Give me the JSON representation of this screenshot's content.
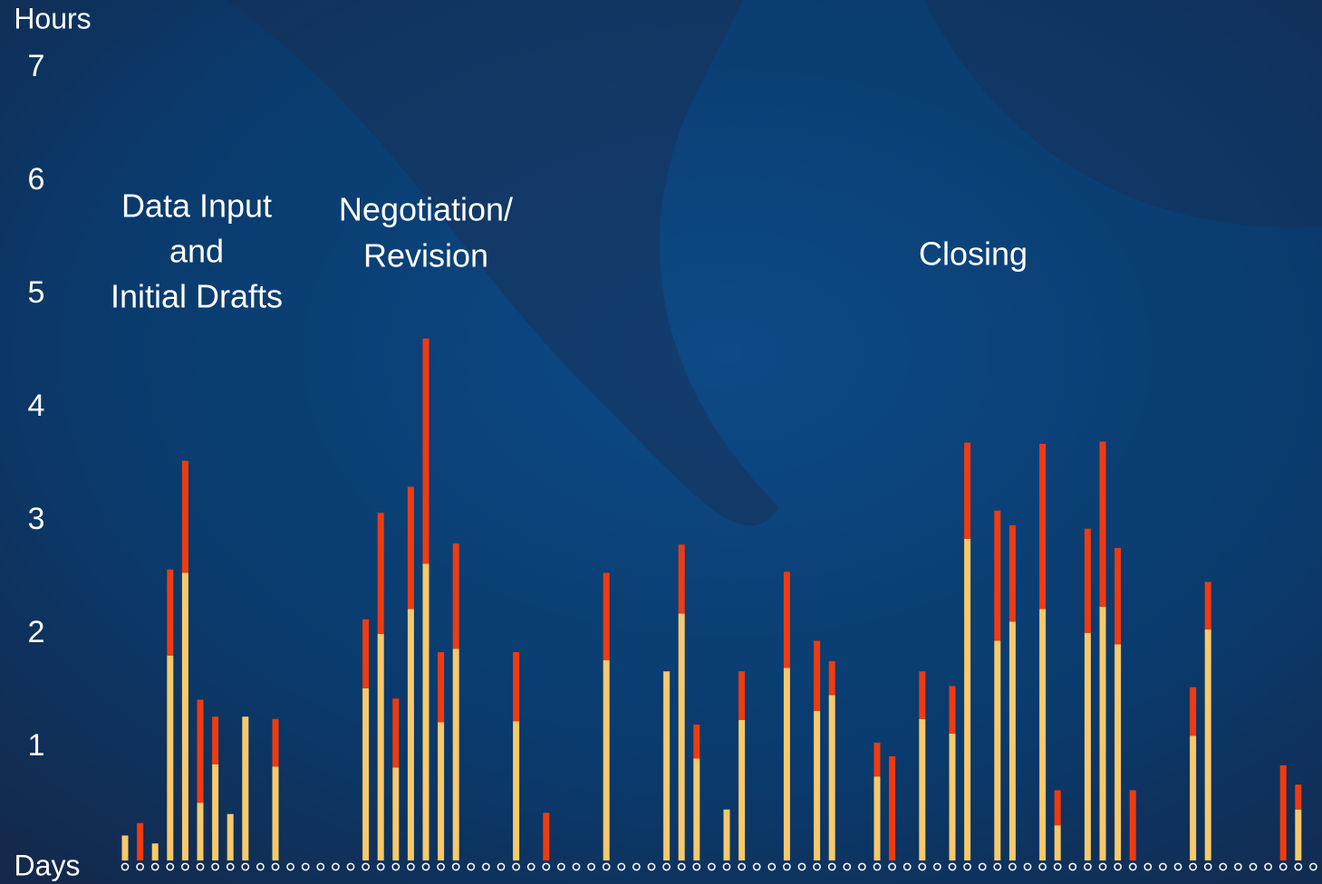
{
  "chart_data": {
    "type": "stacked-bar",
    "y_label": "Hours",
    "x_label": "Days",
    "annotations": [
      [
        "Data Input",
        "and",
        "Initial Drafts"
      ],
      [
        "Negotiation/",
        "Revision"
      ],
      [
        "Closing"
      ]
    ],
    "x": [
      1,
      2,
      3,
      4,
      5,
      6,
      7,
      8,
      9,
      10,
      11,
      12,
      13,
      14,
      15,
      16,
      17,
      18,
      19,
      20,
      21,
      22,
      23,
      24,
      25,
      26,
      27,
      28,
      29,
      30,
      31,
      32,
      33,
      34,
      35,
      36,
      37,
      38,
      39,
      40,
      41,
      42,
      43,
      44,
      45,
      46,
      47,
      48,
      49,
      50,
      51,
      52,
      53,
      54,
      55,
      56,
      57,
      58,
      59,
      60,
      61,
      62,
      63,
      64,
      65,
      66,
      67,
      68,
      69,
      70,
      71,
      72,
      73,
      74,
      75,
      76,
      77,
      78,
      79,
      80
    ],
    "xlim": [
      0,
      81
    ],
    "ylim": [
      0,
      7.6
    ],
    "yticks": [
      1,
      2,
      3,
      4,
      5,
      6,
      7
    ],
    "series": [
      {
        "color": "#f7c96c",
        "values": [
          0.22,
          null,
          0.15,
          1.81,
          2.54,
          0.51,
          0.85,
          0.41,
          1.27,
          null,
          0.83,
          null,
          null,
          null,
          null,
          null,
          1.52,
          2.0,
          0.82,
          2.22,
          2.62,
          1.22,
          1.87,
          null,
          null,
          null,
          1.23,
          null,
          null,
          null,
          null,
          null,
          1.77,
          null,
          null,
          null,
          1.67,
          2.18,
          0.9,
          null,
          0.45,
          1.24,
          null,
          null,
          1.7,
          null,
          1.32,
          1.46,
          null,
          null,
          0.74,
          null,
          null,
          1.25,
          null,
          1.12,
          2.84,
          null,
          1.94,
          2.11,
          null,
          2.22,
          0.31,
          null,
          2.01,
          2.24,
          1.91,
          null,
          null,
          null,
          null,
          1.1,
          2.04,
          null,
          null,
          null,
          null,
          null,
          0.45,
          null
        ]
      },
      {
        "color": "#ee3b12",
        "values": [
          null,
          0.33,
          null,
          0.76,
          0.99,
          0.91,
          0.42,
          null,
          null,
          null,
          0.42,
          null,
          null,
          null,
          null,
          null,
          0.61,
          1.07,
          0.61,
          1.08,
          1.99,
          0.62,
          0.93,
          null,
          null,
          null,
          0.61,
          null,
          0.42,
          null,
          null,
          null,
          0.77,
          null,
          null,
          null,
          null,
          0.61,
          0.3,
          null,
          null,
          0.43,
          null,
          null,
          0.85,
          null,
          0.62,
          0.3,
          null,
          null,
          0.3,
          0.92,
          null,
          0.42,
          null,
          0.42,
          0.85,
          null,
          1.15,
          0.85,
          null,
          1.46,
          0.31,
          null,
          0.92,
          1.46,
          0.85,
          0.62,
          null,
          null,
          null,
          0.43,
          0.42,
          null,
          null,
          null,
          null,
          0.84,
          0.22,
          null
        ]
      }
    ]
  }
}
